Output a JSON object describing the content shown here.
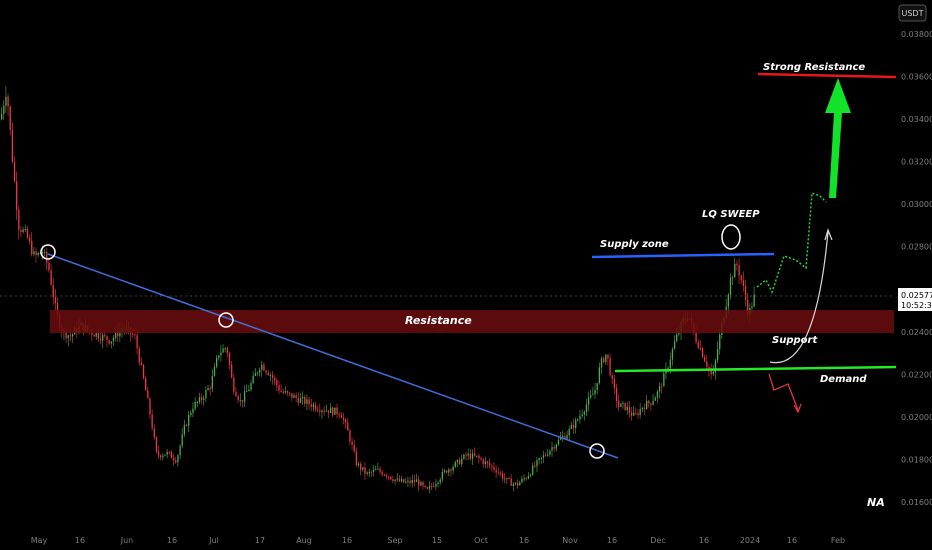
{
  "chart_data": {
    "type": "candlestick",
    "currency": "USDT",
    "ylim": [
      0.0153,
      0.0397
    ],
    "y_ticks": [
      "0.03800",
      "0.03600",
      "0.03400",
      "0.03200",
      "0.03000",
      "0.02800",
      "0.02400",
      "0.02200",
      "0.02000",
      "0.01800",
      "0.01600"
    ],
    "y_tick_values": [
      0.038,
      0.036,
      0.034,
      0.032,
      0.03,
      0.028,
      0.024,
      0.022,
      0.02,
      0.018,
      0.016
    ],
    "x_ticks": [
      "May",
      "16",
      "Jun",
      "16",
      "Jul",
      "17",
      "Aug",
      "16",
      "Sep",
      "15",
      "Oct",
      "16",
      "Nov",
      "16",
      "Dec",
      "16",
      "2024",
      "16",
      "Feb"
    ],
    "current_price": "0.02577",
    "countdown": "10:52:34",
    "price_path": [
      [
        0,
        0.034
      ],
      [
        6,
        0.0355
      ],
      [
        12,
        0.032
      ],
      [
        18,
        0.029
      ],
      [
        26,
        0.0285
      ],
      [
        34,
        0.0275
      ],
      [
        42,
        0.0278
      ],
      [
        48,
        0.027
      ],
      [
        56,
        0.0248
      ],
      [
        62,
        0.024
      ],
      [
        70,
        0.0238
      ],
      [
        80,
        0.0243
      ],
      [
        90,
        0.024
      ],
      [
        100,
        0.0238
      ],
      [
        110,
        0.0236
      ],
      [
        122,
        0.0242
      ],
      [
        134,
        0.0238
      ],
      [
        144,
        0.0215
      ],
      [
        150,
        0.02
      ],
      [
        156,
        0.0182
      ],
      [
        166,
        0.0183
      ],
      [
        176,
        0.018
      ],
      [
        184,
        0.0195
      ],
      [
        192,
        0.0205
      ],
      [
        200,
        0.0208
      ],
      [
        210,
        0.0215
      ],
      [
        218,
        0.023
      ],
      [
        226,
        0.0233
      ],
      [
        232,
        0.0215
      ],
      [
        240,
        0.0207
      ],
      [
        250,
        0.0215
      ],
      [
        260,
        0.0225
      ],
      [
        270,
        0.022
      ],
      [
        280,
        0.0212
      ],
      [
        290,
        0.021
      ],
      [
        300,
        0.0208
      ],
      [
        310,
        0.0206
      ],
      [
        320,
        0.0204
      ],
      [
        330,
        0.0203
      ],
      [
        340,
        0.0202
      ],
      [
        348,
        0.0192
      ],
      [
        356,
        0.0178
      ],
      [
        366,
        0.0173
      ],
      [
        376,
        0.0175
      ],
      [
        386,
        0.0173
      ],
      [
        396,
        0.017
      ],
      [
        406,
        0.0169
      ],
      [
        416,
        0.017
      ],
      [
        426,
        0.0165
      ],
      [
        436,
        0.017
      ],
      [
        446,
        0.0175
      ],
      [
        456,
        0.0178
      ],
      [
        466,
        0.0182
      ],
      [
        476,
        0.0181
      ],
      [
        486,
        0.0178
      ],
      [
        496,
        0.0175
      ],
      [
        506,
        0.017
      ],
      [
        516,
        0.0168
      ],
      [
        526,
        0.0172
      ],
      [
        536,
        0.0178
      ],
      [
        546,
        0.0183
      ],
      [
        556,
        0.0188
      ],
      [
        566,
        0.0192
      ],
      [
        576,
        0.0198
      ],
      [
        586,
        0.0206
      ],
      [
        594,
        0.0212
      ],
      [
        600,
        0.0225
      ],
      [
        606,
        0.023
      ],
      [
        612,
        0.0215
      ],
      [
        618,
        0.0205
      ],
      [
        624,
        0.0205
      ],
      [
        634,
        0.02
      ],
      [
        642,
        0.0205
      ],
      [
        650,
        0.0207
      ],
      [
        658,
        0.0212
      ],
      [
        666,
        0.0222
      ],
      [
        674,
        0.0235
      ],
      [
        682,
        0.0245
      ],
      [
        688,
        0.0248
      ],
      [
        694,
        0.0238
      ],
      [
        700,
        0.0232
      ],
      [
        706,
        0.0225
      ],
      [
        712,
        0.0218
      ],
      [
        718,
        0.0235
      ],
      [
        724,
        0.025
      ],
      [
        730,
        0.0265
      ],
      [
        736,
        0.0272
      ],
      [
        742,
        0.0262
      ],
      [
        748,
        0.0248
      ],
      [
        754,
        0.0257
      ]
    ]
  },
  "annotations": {
    "resistance": "Resistance",
    "supply_zone": "Supply zone",
    "lq_sweep": "LQ SWEEP",
    "support": "Support",
    "demand": "Demand",
    "strong_resistance": "Strong Resistance",
    "watermark": "NA"
  },
  "colors": {
    "up": "#26a69a",
    "down": "#ef5350",
    "bull_candle": "#4caf50",
    "bear_candle": "#f23645",
    "resistance_zone": "#6b0d0d",
    "trendline": "#3f6fd8",
    "supply_line": "#2962ff",
    "demand_line": "#26e826",
    "strong_resistance_line": "#e8171a",
    "arrow_green": "#12e22a"
  }
}
